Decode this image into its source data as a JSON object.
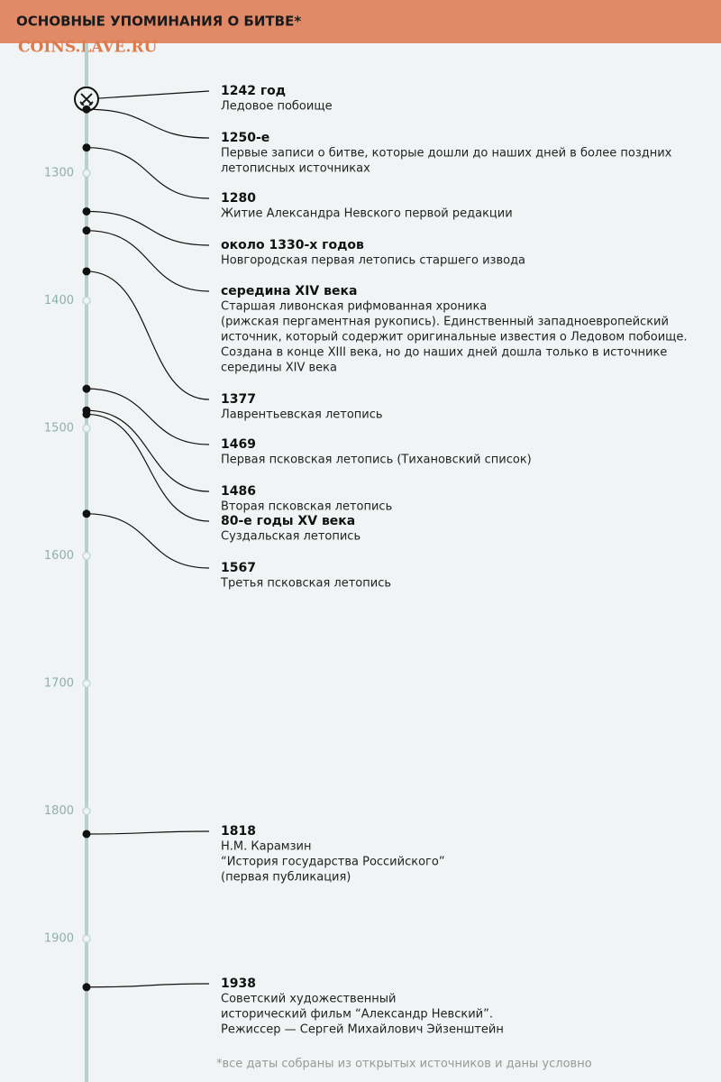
{
  "chart_data": {
    "type": "timeline",
    "title": "ОСНОВНЫЕ УПОМИНАНИЯ О БИТВЕ*",
    "watermark": "COINS.LAVE.RU",
    "footnote": "*все даты собраны из открытых источников и даны условно",
    "ylim": [
      1200,
      2000
    ],
    "yticks": [
      1300,
      1400,
      1500,
      1600,
      1700,
      1800,
      1900
    ],
    "events": [
      {
        "year": 1242,
        "label": "1242 год",
        "lines": [
          "Ледовое побоище"
        ],
        "icon": true
      },
      {
        "year": 1250,
        "label": "1250-е",
        "lines": [
          "Первые записи о битве, которые дошли до наших дней в более поздних",
          "летописных источниках"
        ]
      },
      {
        "year": 1280,
        "label": "1280",
        "lines": [
          "Житие Александра Невского первой редакции"
        ]
      },
      {
        "year": 1330,
        "label": "около 1330-х годов",
        "lines": [
          "Новгородская первая летопись старшего извода"
        ]
      },
      {
        "year": 1345,
        "label": "середина XIV века",
        "lines": [
          "Старшая ливонская рифмованная хроника",
          "(рижская пергаментная рукопись). Единственный западноевропейский",
          "источник, который содержит оригинальные известия о Ледовом побоище.",
          "Создана в конце XIII века, но до наших дней дошла только в источнике",
          "середины XIV века"
        ]
      },
      {
        "year": 1377,
        "label": "1377",
        "lines": [
          "Лаврентьевская летопись"
        ]
      },
      {
        "year": 1469,
        "label": "1469",
        "lines": [
          "Первая псковская летопись (Тихановский список)"
        ]
      },
      {
        "year": 1486,
        "label": "1486",
        "lines": [
          "Вторая псковская летопись"
        ]
      },
      {
        "year": 1489,
        "label": "80-е годы XV века",
        "lines": [
          "Суздальская летопись"
        ]
      },
      {
        "year": 1567,
        "label": "1567",
        "lines": [
          "Третья псковская летопись"
        ]
      },
      {
        "year": 1818,
        "label": "1818",
        "lines": [
          "Н.М. Карамзин",
          "“История государства Российского”",
          "(первая публикация)"
        ]
      },
      {
        "year": 1938,
        "label": "1938",
        "lines": [
          "Советский художественный",
          "исторический фильм “Александр Невский”.",
          "Режиссер — Сергей Михайлович Эйзенштейн"
        ]
      }
    ]
  }
}
